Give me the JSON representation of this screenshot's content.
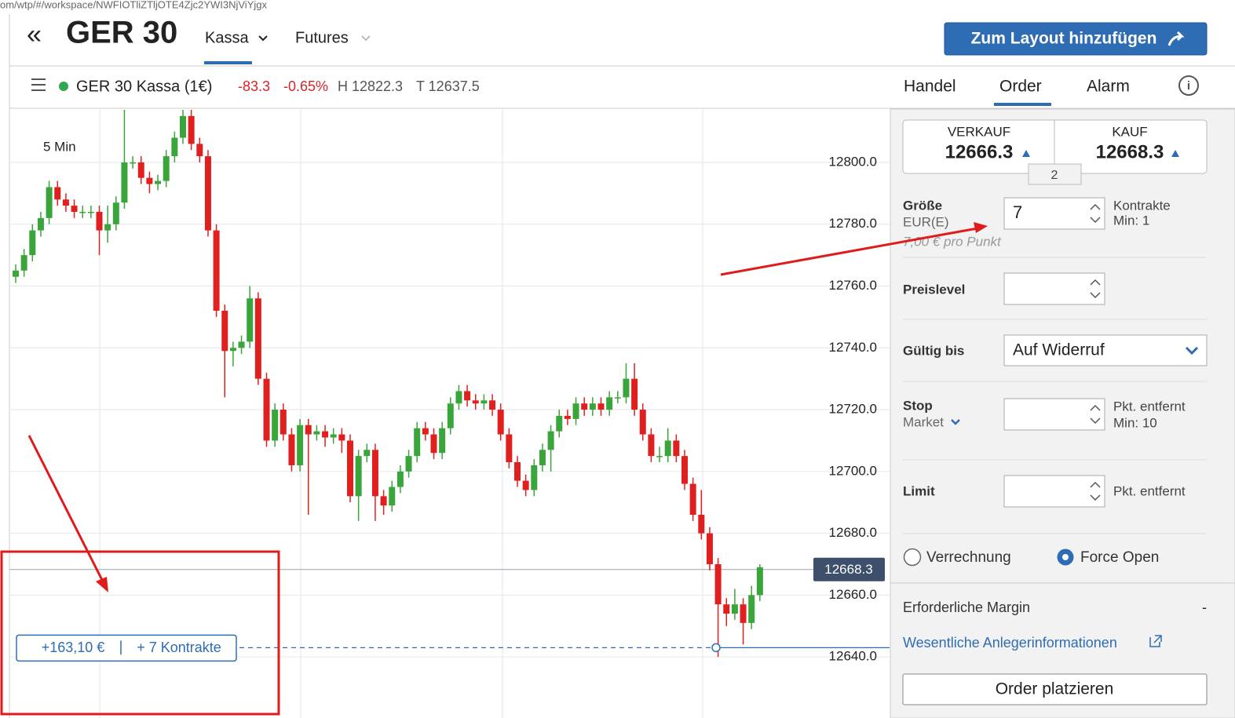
{
  "browser": {
    "url": "om/wtp/#/workspace/NWFIOTliZTljOTE4Zjc2YWI3NjViYjgx"
  },
  "header": {
    "title": "GER 30",
    "tabs": [
      "Kassa",
      "Futures"
    ],
    "button": "Zum Layout hinzufügen"
  },
  "instrument_bar": {
    "name": "GER 30 Kassa (1€)",
    "change": "-83.3",
    "change_pct": "-0.65%",
    "high": "H 12822.3",
    "low": "T 12637.5"
  },
  "panel_tabs": [
    "Handel",
    "Order",
    "Alarm"
  ],
  "chart_data": {
    "type": "candlestick",
    "interval_label": "5 Min",
    "open": [
      12763,
      12765,
      12770,
      12778,
      12782,
      12792,
      12788,
      12786,
      12784,
      12784,
      12784,
      12778,
      12780,
      12787,
      12800,
      12800,
      12795,
      12793,
      12794,
      12802,
      12808,
      12815,
      12806,
      12802,
      12778,
      12752,
      12739,
      12740,
      12742,
      12756,
      12730,
      12710,
      12720,
      12712,
      12702,
      12715,
      12712,
      12713,
      12711,
      12712,
      12710,
      12692,
      12705,
      12707,
      12692,
      12689,
      12695,
      12700,
      12705,
      12714,
      12712,
      12706,
      12714,
      12722,
      12726,
      12723,
      12722,
      12723,
      12720,
      12712,
      12703,
      12697,
      12694,
      12702,
      12707,
      12713,
      12718,
      12717,
      12722,
      12720,
      12722,
      12720,
      12724,
      12724,
      12730,
      12720,
      12712,
      12705,
      12705,
      12710,
      12705,
      12696,
      12686,
      12680,
      12670,
      12657,
      12654,
      12657,
      12651,
      12660
    ],
    "high": [
      12767,
      12772,
      12780,
      12784,
      12794,
      12794,
      12790,
      12788,
      12786,
      12786,
      12786,
      12786,
      12789,
      12817,
      12802,
      12802,
      12797,
      12796,
      12804,
      12810,
      12817,
      12817,
      12808,
      12804,
      12780,
      12754,
      12742,
      12744,
      12760,
      12758,
      12732,
      12722,
      12722,
      12714,
      12717,
      12717,
      12715,
      12715,
      12714,
      12714,
      12712,
      12707,
      12709,
      12709,
      12694,
      12697,
      12702,
      12707,
      12716,
      12716,
      12714,
      12716,
      12724,
      12728,
      12728,
      12725,
      12725,
      12725,
      12722,
      12714,
      12705,
      12699,
      12704,
      12709,
      12715,
      12720,
      12720,
      12724,
      12724,
      12724,
      12724,
      12726,
      12726,
      12735,
      12735,
      12722,
      12714,
      12708,
      12714,
      12712,
      12707,
      12698,
      12694,
      12682,
      12672,
      12659,
      12662,
      12659,
      12663,
      12670
    ],
    "low": [
      12761,
      12763,
      12768,
      12776,
      12780,
      12786,
      12784,
      12782,
      12782,
      12782,
      12770,
      12774,
      12778,
      12785,
      12798,
      12793,
      12790,
      12791,
      12792,
      12800,
      12806,
      12804,
      12800,
      12776,
      12750,
      12724,
      12734,
      12738,
      12740,
      12728,
      12708,
      12708,
      12710,
      12700,
      12700,
      12686,
      12710,
      12708,
      12709,
      12706,
      12690,
      12684,
      12703,
      12684,
      12686,
      12687,
      12693,
      12698,
      12703,
      12710,
      12704,
      12704,
      12712,
      12720,
      12721,
      12720,
      12720,
      12718,
      12710,
      12701,
      12695,
      12692,
      12692,
      12700,
      12700,
      12711,
      12715,
      12715,
      12718,
      12718,
      12718,
      12718,
      12722,
      12722,
      12718,
      12710,
      12703,
      12703,
      12703,
      12703,
      12694,
      12684,
      12678,
      12668,
      12640,
      12650,
      12652,
      12644,
      12649,
      12658
    ],
    "close": [
      12765,
      12770,
      12778,
      12782,
      12792,
      12788,
      12786,
      12784,
      12784,
      12784,
      12778,
      12780,
      12787,
      12800,
      12800,
      12795,
      12793,
      12794,
      12802,
      12808,
      12815,
      12806,
      12802,
      12778,
      12752,
      12739,
      12740,
      12742,
      12756,
      12730,
      12710,
      12720,
      12712,
      12702,
      12715,
      12712,
      12713,
      12711,
      12712,
      12710,
      12692,
      12705,
      12707,
      12692,
      12689,
      12695,
      12700,
      12705,
      12714,
      12712,
      12706,
      12714,
      12722,
      12726,
      12723,
      12722,
      12723,
      12720,
      12712,
      12703,
      12697,
      12694,
      12702,
      12707,
      12713,
      12718,
      12717,
      12722,
      12720,
      12722,
      12720,
      12724,
      12724,
      12730,
      12720,
      12712,
      12705,
      12705,
      12710,
      12705,
      12696,
      12686,
      12680,
      12670,
      12657,
      12654,
      12657,
      12651,
      12660,
      12669
    ],
    "up_color": "#3aa53a",
    "down_color": "#e0201f",
    "ylim": [
      12621,
      12817
    ],
    "yticks": [
      {
        "value": 12640,
        "label": "12640.0"
      },
      {
        "value": 12660,
        "label": "12660.0"
      },
      {
        "value": 12680,
        "label": "12680.0"
      },
      {
        "value": 12700,
        "label": "12700.0"
      },
      {
        "value": 12720,
        "label": "12720.0"
      },
      {
        "value": 12740,
        "label": "12740.0"
      },
      {
        "value": 12760,
        "label": "12760.0"
      },
      {
        "value": 12780,
        "label": "12780.0"
      },
      {
        "value": 12800,
        "label": "12800.0"
      }
    ],
    "grid": true,
    "current_price": 12668.3,
    "position": {
      "level": 12643,
      "profit": "+163,10 €",
      "size": "+ 7 Kontrakte"
    }
  },
  "order_panel": {
    "sell": {
      "label": "VERKAUF",
      "price": "12666.3"
    },
    "buy": {
      "label": "KAUF",
      "price": "12668.3"
    },
    "spread": "2",
    "size": {
      "label": "Größe",
      "unit": "EUR(E)",
      "value": "7",
      "hint": "Kontrakte",
      "min": "Min: 1",
      "per_point": "7,00 € pro Punkt"
    },
    "price_level": {
      "label": "Preislevel"
    },
    "valid_until": {
      "label": "Gültig bis",
      "value": "Auf Widerruf"
    },
    "stop": {
      "label": "Stop",
      "type": "Market",
      "hint": "Pkt. entfernt",
      "min": "Min: 10"
    },
    "limit": {
      "label": "Limit",
      "hint": "Pkt. entfernt"
    },
    "radios": [
      "Verrechnung",
      "Force Open"
    ],
    "margin": {
      "label": "Erforderliche Margin",
      "value": "-"
    },
    "link": "Wesentliche Anlegerinformationen",
    "submit": "Order platzieren"
  }
}
